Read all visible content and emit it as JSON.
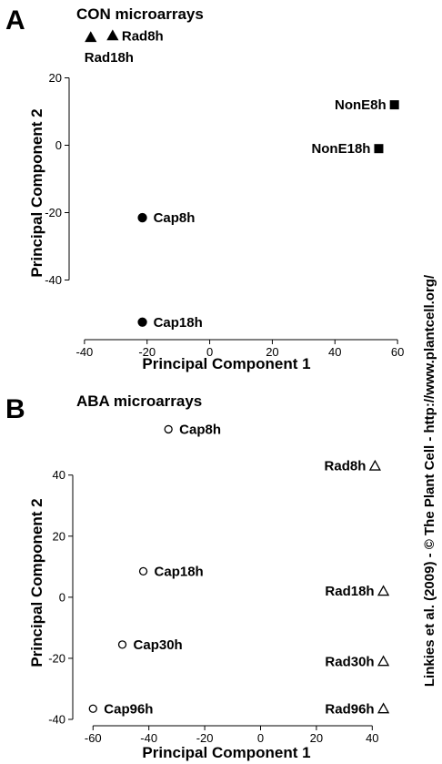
{
  "credit": "Linkies et al. (2009) - © The Plant Cell - http://www.plantcell.org/",
  "chart_data": [
    {
      "panel": "A",
      "title": "CON microarrays",
      "type": "scatter",
      "xlabel": "Principal Component 1",
      "ylabel": "Principal Component 2",
      "xlim": [
        -42,
        62
      ],
      "ylim": [
        -55,
        35
      ],
      "xticks": [
        -40,
        -20,
        0,
        20,
        40,
        60
      ],
      "yticks": [
        20,
        0,
        -20,
        -40
      ],
      "grid": false,
      "points": [
        {
          "label": "Rad8h",
          "x": -31,
          "y": 32.5,
          "marker": "triangle-filled"
        },
        {
          "label": "Rad18h",
          "x": -38,
          "y": 32,
          "marker": "triangle-filled"
        },
        {
          "label": "NonE8h",
          "x": 59,
          "y": 12,
          "marker": "square-filled"
        },
        {
          "label": "NonE18h",
          "x": 54,
          "y": -1,
          "marker": "square-filled"
        },
        {
          "label": "Cap8h",
          "x": -21.5,
          "y": -21.5,
          "marker": "circle-filled"
        },
        {
          "label": "Cap18h",
          "x": -21.5,
          "y": -52.5,
          "marker": "circle-filled"
        }
      ]
    },
    {
      "panel": "B",
      "title": "ABA microarrays",
      "type": "scatter",
      "xlabel": "Principal Component 1",
      "ylabel": "Principal Component 2",
      "xlim": [
        -64,
        50
      ],
      "ylim": [
        -40,
        59
      ],
      "xticks": [
        -60,
        -40,
        -20,
        0,
        20,
        40
      ],
      "yticks": [
        40,
        20,
        0,
        -20,
        -40
      ],
      "grid": false,
      "points": [
        {
          "label": "Cap8h",
          "x": -33,
          "y": 55,
          "marker": "circle-open"
        },
        {
          "label": "Cap18h",
          "x": -42,
          "y": 8.5,
          "marker": "circle-open"
        },
        {
          "label": "Cap30h",
          "x": -49.5,
          "y": -15.5,
          "marker": "circle-open"
        },
        {
          "label": "Cap96h",
          "x": -60,
          "y": -36.5,
          "marker": "circle-open"
        },
        {
          "label": "Rad8h",
          "x": 41,
          "y": 43,
          "marker": "triangle-open"
        },
        {
          "label": "Rad18h",
          "x": 44,
          "y": 2,
          "marker": "triangle-open"
        },
        {
          "label": "Rad30h",
          "x": 44,
          "y": -21,
          "marker": "triangle-open"
        },
        {
          "label": "Rad96h",
          "x": 44,
          "y": -36.5,
          "marker": "triangle-open"
        }
      ]
    }
  ]
}
